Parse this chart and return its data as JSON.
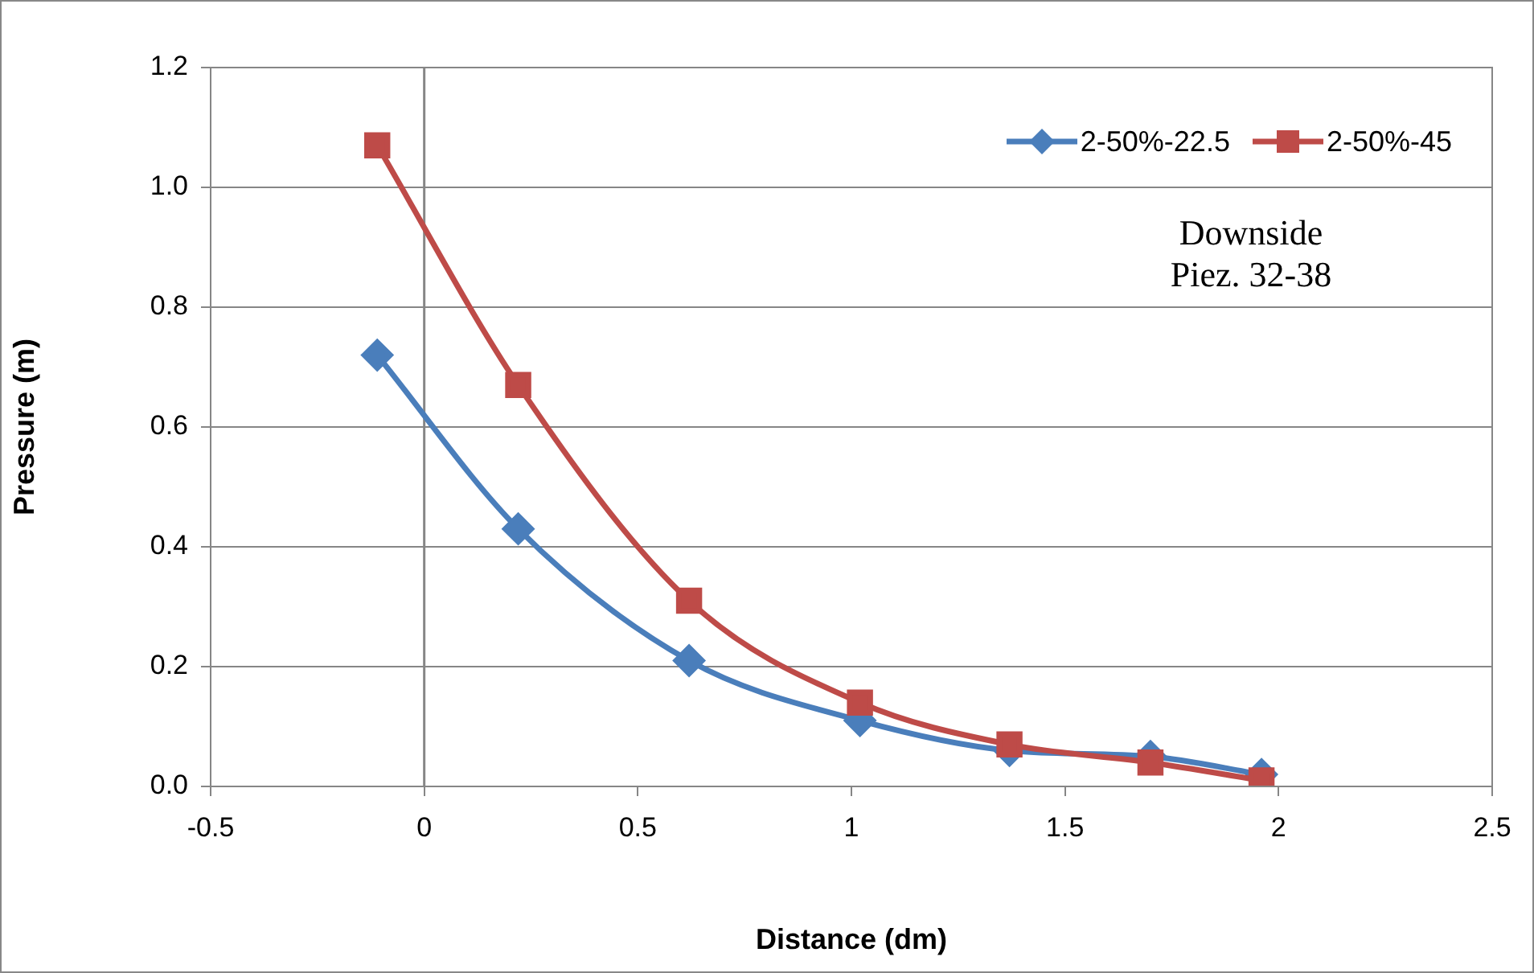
{
  "chart_data": {
    "type": "line",
    "xlabel": "Distance (dm)",
    "ylabel": "Pressure (m)",
    "x": [
      -0.11,
      0.22,
      0.62,
      1.02,
      1.37,
      1.7,
      1.96
    ],
    "series": [
      {
        "name": "2-50%-22.5",
        "color": "#4a7ebb",
        "marker": "diamond",
        "values": [
          0.72,
          0.43,
          0.21,
          0.11,
          0.06,
          0.05,
          0.02
        ]
      },
      {
        "name": "2-50%-45",
        "color": "#be4b48",
        "marker": "square",
        "values": [
          1.07,
          0.67,
          0.31,
          0.14,
          0.07,
          0.04,
          0.01
        ]
      }
    ],
    "xlim": [
      -0.5,
      2.5
    ],
    "xticks": [
      -0.5,
      0,
      0.5,
      1,
      1.5,
      2,
      2.5
    ],
    "ylim": [
      0,
      1.2
    ],
    "yticks": [
      {
        "value": 0,
        "label": "0.0"
      },
      {
        "value": 0.2,
        "label": "0.2"
      },
      {
        "value": 0.4,
        "label": "0.4"
      },
      {
        "value": 0.6,
        "label": "0.6"
      },
      {
        "value": 0.8,
        "label": "0.8"
      },
      {
        "value": 1,
        "label": "1.0"
      },
      {
        "value": 1.2,
        "label": "1.2"
      }
    ],
    "grid": "y",
    "legend": "top right",
    "line_style": "solid",
    "ref_lines": [
      {
        "axis": "x",
        "value": 0,
        "color": "#868686"
      }
    ],
    "annotations": [
      "Downside\nPiez. 32-38"
    ]
  }
}
